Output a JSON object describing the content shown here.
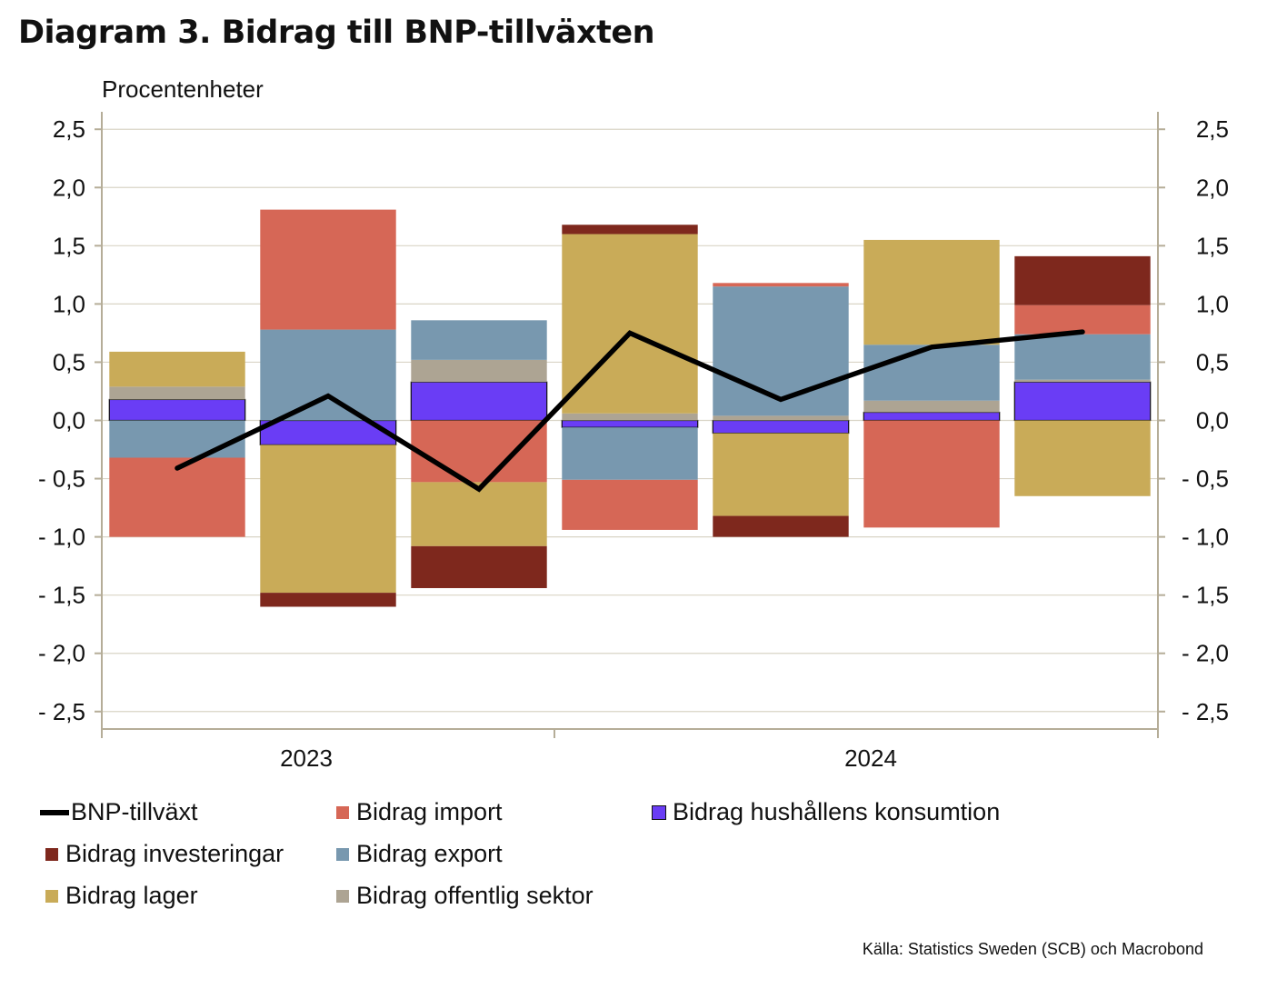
{
  "title": "Diagram 3. Bidrag till BNP-tillväxten",
  "unit_label": "Procentenheter",
  "source": "Källa: Statistics Sweden (SCB)  och Macrobond",
  "chart_data": {
    "type": "bar",
    "stacked": true,
    "x_tick_labels": [
      "2023",
      "2024"
    ],
    "y_tick_labels": [
      "2,5",
      "2,0",
      "1,5",
      "1,0",
      "0,5",
      "0,0",
      "- 0,5",
      "- 1,0",
      "- 1,5",
      "- 2,0",
      "- 2,5"
    ],
    "y_ticks": [
      2.5,
      2.0,
      1.5,
      1.0,
      0.5,
      0.0,
      -0.5,
      -1.0,
      -1.5,
      -2.0,
      -2.5
    ],
    "ylim": [
      -2.65,
      2.65
    ],
    "grid": true,
    "legend_position": "bottom",
    "period_count": 7,
    "series": [
      {
        "name": "Bidrag hushållens konsumtion",
        "color": "#6A3DF5",
        "outlined": true,
        "values": [
          0.18,
          -0.21,
          0.33,
          -0.06,
          -0.11,
          0.07,
          0.33
        ]
      },
      {
        "name": "Bidrag offentlig sektor",
        "color": "#ADA493",
        "values": [
          0.11,
          0.0,
          0.19,
          0.06,
          0.04,
          0.1,
          0.02
        ]
      },
      {
        "name": "Bidrag export",
        "color": "#7898AF",
        "values": [
          -0.32,
          0.78,
          0.34,
          -0.45,
          1.11,
          0.48,
          0.39
        ]
      },
      {
        "name": "Bidrag import",
        "color": "#D66756",
        "values": [
          -0.68,
          1.03,
          -0.53,
          -0.43,
          0.03,
          -0.92,
          0.25
        ]
      },
      {
        "name": "Bidrag lager",
        "color": "#C9AB58",
        "values": [
          0.3,
          -1.27,
          -0.55,
          1.54,
          -0.71,
          0.9,
          -0.65
        ]
      },
      {
        "name": "Bidrag investeringar",
        "color": "#7E281D",
        "values": [
          0.0,
          -0.12,
          -0.36,
          0.08,
          -0.18,
          0.0,
          0.42
        ]
      }
    ],
    "line": {
      "name": "BNP-tillväxt",
      "color": "#000000",
      "values": [
        -0.41,
        0.21,
        -0.59,
        0.75,
        0.18,
        0.63,
        0.76
      ]
    }
  },
  "legend": [
    {
      "label": "BNP-tillväxt",
      "kind": "line",
      "color": "#000000"
    },
    {
      "label": "Bidrag import",
      "kind": "box",
      "color": "#D66756"
    },
    {
      "label": "Bidrag hushållens konsumtion",
      "kind": "box",
      "color": "#6A3DF5"
    },
    {
      "label": "Bidrag investeringar",
      "kind": "box",
      "color": "#7E281D"
    },
    {
      "label": "Bidrag export",
      "kind": "box",
      "color": "#7898AF"
    },
    {
      "label": "Bidrag lager",
      "kind": "box",
      "color": "#C9AB58"
    },
    {
      "label": "Bidrag offentlig sektor",
      "kind": "box",
      "color": "#ADA493"
    }
  ]
}
